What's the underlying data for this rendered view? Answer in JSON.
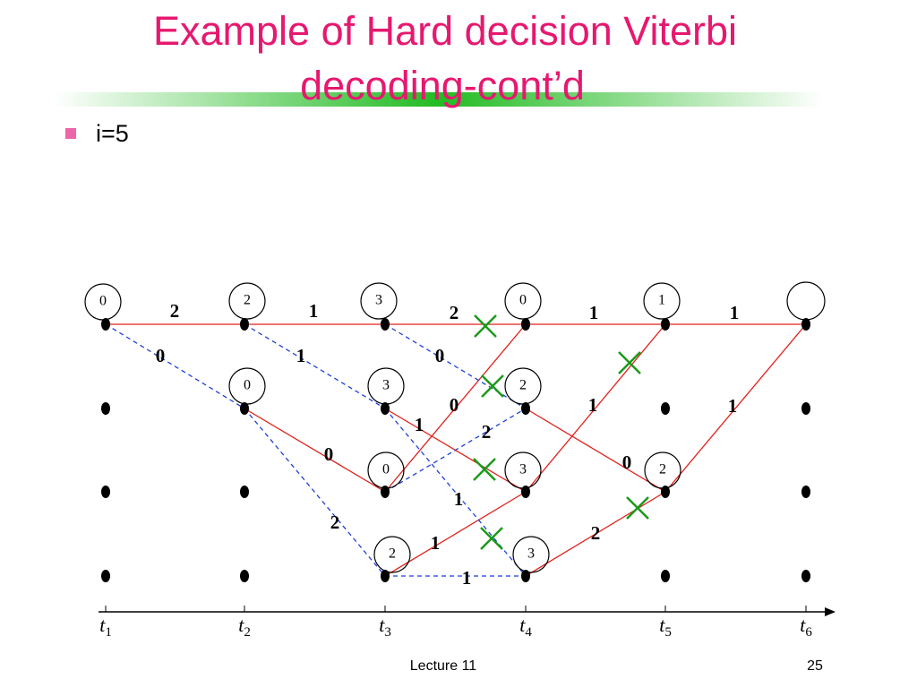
{
  "header": {
    "title_lines": [
      "Example of Hard decision Viterbi",
      "decoding-cont’d"
    ]
  },
  "bullet": "i=5",
  "node_labels": [
    "0",
    "2",
    "0",
    "3",
    "3",
    "0",
    "2",
    "0",
    "2",
    "3",
    "3",
    "1",
    "2"
  ],
  "edge_labels": [
    "2",
    "1",
    "2",
    "1",
    "1",
    "0",
    "0",
    "1",
    "0",
    "1",
    "2",
    "1",
    "1",
    "0",
    "1",
    "0",
    "2",
    "2",
    "1",
    "1"
  ],
  "time_labels": [
    {
      "var": "t",
      "sub": "1"
    },
    {
      "var": "t",
      "sub": "2"
    },
    {
      "var": "t",
      "sub": "3"
    },
    {
      "var": "t",
      "sub": "4"
    },
    {
      "var": "t",
      "sub": "5"
    },
    {
      "var": "t",
      "sub": "6"
    }
  ],
  "footer": {
    "center": "Lecture 11",
    "page": "25"
  }
}
